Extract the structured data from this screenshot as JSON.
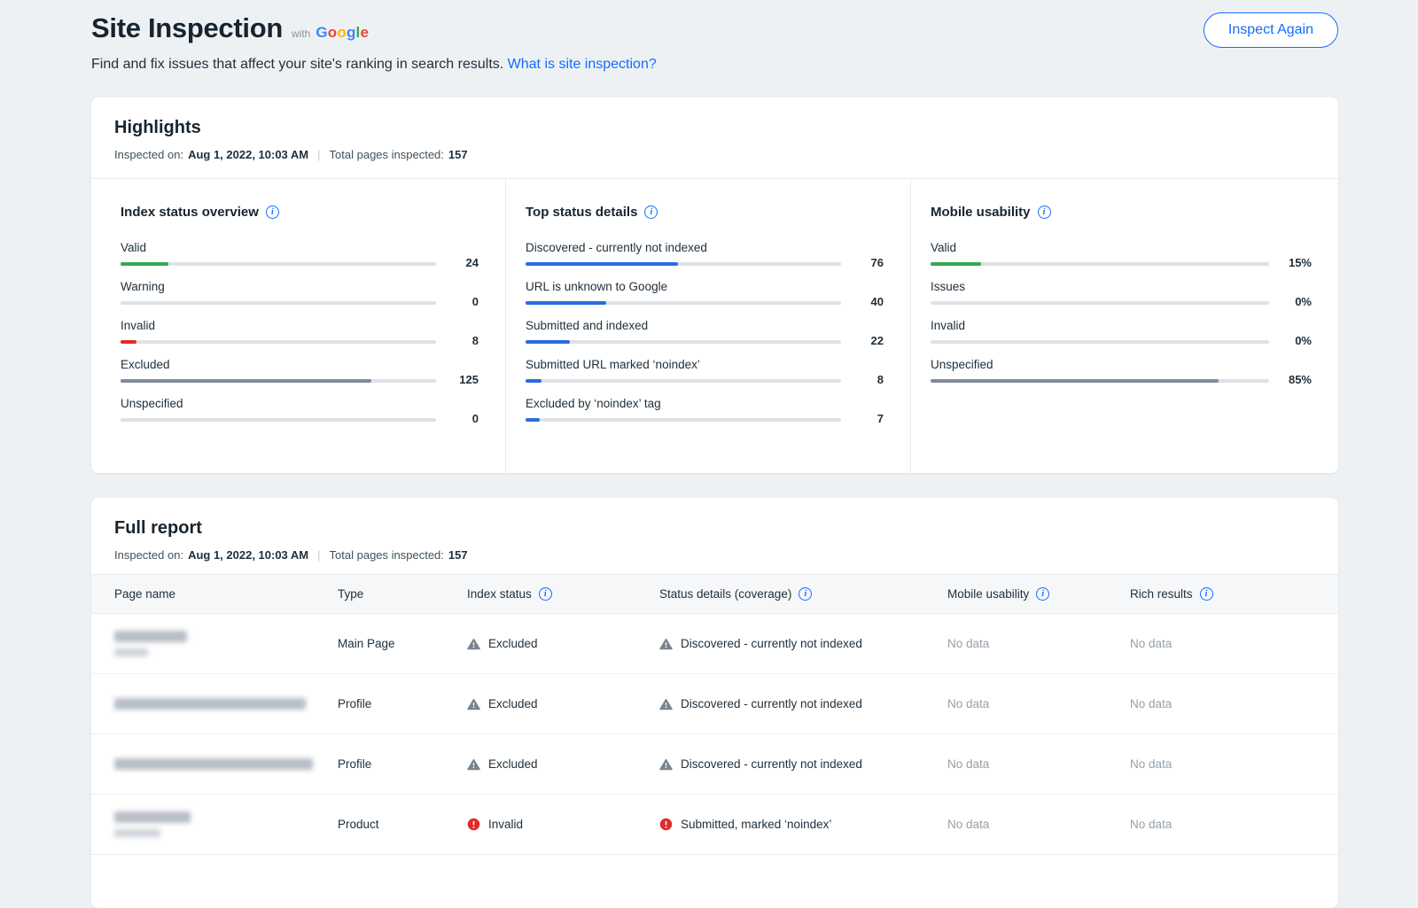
{
  "brand": {
    "google_word": "Google",
    "google_colors": [
      "#4285F4",
      "#EA4335",
      "#FBBC05",
      "#4285F4",
      "#34A853",
      "#EA4335"
    ]
  },
  "icons": {
    "info": "i"
  },
  "colors": {
    "accent_blue": "#116dff",
    "bar_blue": "#2a6ce0",
    "bar_green": "#34a853",
    "bar_red": "#e02b2b",
    "bar_gray": "#808a99"
  },
  "header": {
    "title": "Site Inspection",
    "with_label": "with",
    "subtitle": "Find and fix issues that affect your site's ranking in search results.",
    "subtitle_link": "What is site inspection?",
    "inspect_again_label": "Inspect Again"
  },
  "highlights": {
    "title": "Highlights",
    "inspected_on_label": "Inspected on:",
    "inspected_on_value": "Aug 1, 2022, 10:03 AM",
    "meta_divider": "|",
    "total_label": "Total pages inspected:",
    "total_value": "157",
    "columns": [
      {
        "title": "Index status overview",
        "bars": [
          {
            "label": "Valid",
            "value": "24",
            "pct": 15.3,
            "color": "#34a853"
          },
          {
            "label": "Warning",
            "value": "0",
            "pct": 0,
            "color": "#34a853"
          },
          {
            "label": "Invalid",
            "value": "8",
            "pct": 5.1,
            "color": "#e02b2b"
          },
          {
            "label": "Excluded",
            "value": "125",
            "pct": 79.6,
            "color": "#808a99"
          },
          {
            "label": "Unspecified",
            "value": "0",
            "pct": 0,
            "color": "#808a99"
          }
        ]
      },
      {
        "title": "Top status details",
        "bars": [
          {
            "label": "Discovered - currently not indexed",
            "value": "76",
            "pct": 48.4,
            "color": "#2a6ce0"
          },
          {
            "label": "URL is unknown to Google",
            "value": "40",
            "pct": 25.5,
            "color": "#2a6ce0"
          },
          {
            "label": "Submitted and indexed",
            "value": "22",
            "pct": 14.0,
            "color": "#2a6ce0"
          },
          {
            "label": "Submitted URL marked ‘noindex’",
            "value": "8",
            "pct": 5.1,
            "color": "#2a6ce0"
          },
          {
            "label": "Excluded by ‘noindex’ tag",
            "value": "7",
            "pct": 4.5,
            "color": "#2a6ce0"
          }
        ]
      },
      {
        "title": "Mobile usability",
        "bars": [
          {
            "label": "Valid",
            "value": "15%",
            "pct": 15,
            "color": "#34a853"
          },
          {
            "label": "Issues",
            "value": "0%",
            "pct": 0,
            "color": "#34a853"
          },
          {
            "label": "Invalid",
            "value": "0%",
            "pct": 0,
            "color": "#e02b2b"
          },
          {
            "label": "Unspecified",
            "value": "85%",
            "pct": 85,
            "color": "#808a99"
          }
        ]
      }
    ]
  },
  "report": {
    "title": "Full report",
    "inspected_on_label": "Inspected on:",
    "inspected_on_value": "Aug 1, 2022, 10:03 AM",
    "meta_divider": "|",
    "total_label": "Total pages inspected:",
    "total_value": "157",
    "table": {
      "headers": [
        {
          "label": "Page name",
          "info": false
        },
        {
          "label": "Type",
          "info": false
        },
        {
          "label": "Index status",
          "info": true
        },
        {
          "label": "Status details (coverage)",
          "info": true
        },
        {
          "label": "Mobile usability",
          "info": true
        },
        {
          "label": "Rich results",
          "info": true
        }
      ],
      "rows": [
        {
          "name_redacted_lines": [
            82,
            38
          ],
          "type": "Main Page",
          "index_status": {
            "icon": "warning",
            "label": "Excluded"
          },
          "status_details": {
            "icon": "warning",
            "label": "Discovered - currently not indexed"
          },
          "mobile_usability": "No data",
          "rich_results": "No data"
        },
        {
          "name_redacted_lines": [
            216
          ],
          "type": "Profile",
          "index_status": {
            "icon": "warning",
            "label": "Excluded"
          },
          "status_details": {
            "icon": "warning",
            "label": "Discovered - currently not indexed"
          },
          "mobile_usability": "No data",
          "rich_results": "No data"
        },
        {
          "name_redacted_lines": [
            224
          ],
          "type": "Profile",
          "index_status": {
            "icon": "warning",
            "label": "Excluded"
          },
          "status_details": {
            "icon": "warning",
            "label": "Discovered - currently not indexed"
          },
          "mobile_usability": "No data",
          "rich_results": "No data"
        },
        {
          "name_redacted_lines": [
            86,
            52
          ],
          "type": "Product",
          "index_status": {
            "icon": "error",
            "label": "Invalid"
          },
          "status_details": {
            "icon": "error",
            "label": "Submitted, marked ‘noindex’"
          },
          "mobile_usability": "No data",
          "rich_results": "No data"
        }
      ]
    }
  }
}
